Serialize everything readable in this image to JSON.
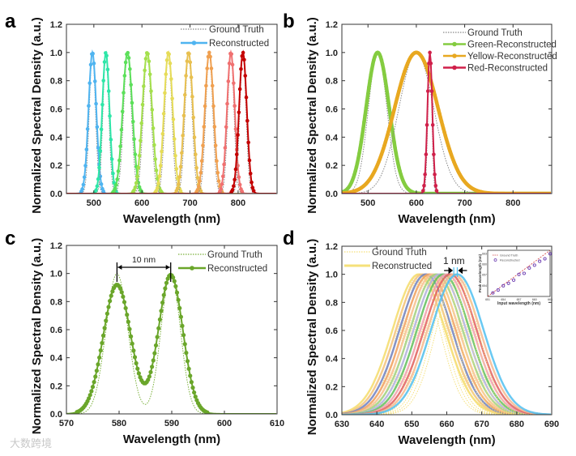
{
  "watermark": "大数跨境",
  "chart_data": [
    {
      "panel": "a",
      "type": "line",
      "xlabel": "Wavelength (nm)",
      "ylabel": "Normalized Spectral Density (a.u.)",
      "xlim": [
        443,
        881
      ],
      "ylim": [
        0,
        1.2
      ],
      "xticks": [
        500,
        600,
        700,
        800
      ],
      "yticks": [
        0.0,
        0.2,
        0.4,
        0.6,
        0.8,
        1.0,
        1.2
      ],
      "legend": {
        "placement": "top-right",
        "entries": [
          {
            "label": "Ground Truth",
            "style": "dotted",
            "color": "#888888"
          },
          {
            "label": "Reconstructed",
            "style": "line-marker",
            "color": "#4fb4f0"
          }
        ]
      },
      "series": [
        {
          "name": "Reconstructed 497",
          "color": "#4fb4f0",
          "center": 497,
          "sigma": 8,
          "amplitude": 1.0
        },
        {
          "name": "Reconstructed 525",
          "color": "#2ee6a8",
          "center": 525,
          "sigma": 7.5,
          "amplitude": 1.0
        },
        {
          "name": "Reconstructed 570",
          "color": "#5ce05a",
          "center": 570,
          "sigma": 10,
          "amplitude": 1.0
        },
        {
          "name": "Reconstructed 611",
          "color": "#a4e04c",
          "center": 611,
          "sigma": 10,
          "amplitude": 1.0
        },
        {
          "name": "Reconstructed 655",
          "color": "#e6dc58",
          "center": 655,
          "sigma": 9,
          "amplitude": 1.0
        },
        {
          "name": "Reconstructed 697",
          "color": "#e8c050",
          "center": 697,
          "sigma": 9,
          "amplitude": 1.0
        },
        {
          "name": "Reconstructed 740",
          "color": "#f0a050",
          "center": 740,
          "sigma": 9,
          "amplitude": 1.0
        },
        {
          "name": "Reconstructed 785",
          "color": "#f07070",
          "center": 785,
          "sigma": 8,
          "amplitude": 1.0
        },
        {
          "name": "Reconstructed 810",
          "color": "#c40000",
          "center": 810,
          "sigma": 8,
          "amplitude": 1.0
        }
      ]
    },
    {
      "panel": "b",
      "type": "line",
      "xlabel": "Wavelength (nm)",
      "ylabel": "Normalized Spectral Density (a.u.)",
      "xlim": [
        446,
        880
      ],
      "ylim": [
        0,
        1.2
      ],
      "xticks": [
        500,
        600,
        700,
        800
      ],
      "yticks": [
        0.0,
        0.2,
        0.4,
        0.6,
        0.8,
        1.0,
        1.2
      ],
      "legend": {
        "placement": "top-right",
        "entries": [
          {
            "label": "Ground Truth",
            "style": "dotted",
            "color": "#888888"
          },
          {
            "label": "Green-Reconstructed",
            "style": "line-marker",
            "color": "#84cc40"
          },
          {
            "label": "Yellow-Reconstructed",
            "style": "line-marker",
            "color": "#e8a820"
          },
          {
            "label": "Red-Reconstructed",
            "style": "line-marker",
            "color": "#d0204a"
          }
        ]
      },
      "series": [
        {
          "name": "Green-Reconstructed",
          "color": "#84cc40",
          "center": 520,
          "sigma": 24,
          "amplitude": 1.0
        },
        {
          "name": "Yellow-Reconstructed",
          "color": "#e8a820",
          "center": 600,
          "sigma": 45,
          "amplitude": 1.0
        },
        {
          "name": "Red-Reconstructed",
          "color": "#d0204a",
          "center": 628,
          "sigma": 5,
          "amplitude": 1.0
        }
      ]
    },
    {
      "panel": "c",
      "type": "line",
      "xlabel": "Wavelength (nm)",
      "ylabel": "Normalized Spectral Density (a.u.)",
      "xlim": [
        570,
        610
      ],
      "ylim": [
        0,
        1.2
      ],
      "xticks": [
        570,
        580,
        590,
        600,
        610
      ],
      "yticks": [
        0.0,
        0.2,
        0.4,
        0.6,
        0.8,
        1.0,
        1.2
      ],
      "annotation": "10 nm",
      "legend": {
        "placement": "top-right",
        "entries": [
          {
            "label": "Ground Truth",
            "style": "dotted",
            "color": "#7ab03a"
          },
          {
            "label": "Reconstructed",
            "style": "line-marker",
            "color": "#6aa62a"
          }
        ]
      },
      "series": [
        {
          "name": "Reconstructed",
          "color": "#6aa62a",
          "peaks": [
            {
              "center": 579.6,
              "sigma": 2.6,
              "amplitude": 0.92
            },
            {
              "center": 589.8,
              "sigma": 2.3,
              "amplitude": 0.99
            }
          ]
        }
      ]
    },
    {
      "panel": "d",
      "type": "line",
      "xlabel": "Wavelength (nm)",
      "ylabel": "Normalized Spectral Density (a.u.)",
      "xlim": [
        630,
        690
      ],
      "ylim": [
        0,
        1.2
      ],
      "xticks": [
        630,
        640,
        650,
        660,
        670,
        680,
        690
      ],
      "yticks": [
        0.0,
        0.2,
        0.4,
        0.6,
        0.8,
        1.0,
        1.2
      ],
      "annotation": "1 nm",
      "legend": {
        "placement": "top-left",
        "entries": [
          {
            "label": "Ground Truth",
            "style": "dotted",
            "color": "#f5e07a"
          },
          {
            "label": "Reconstructed",
            "style": "line",
            "color": "#f5e07a"
          }
        ]
      },
      "series": [
        {
          "name": "652 nm",
          "color": "#f5dc6a",
          "center": 652,
          "sigma": 7.5,
          "amplitude": 1.0
        },
        {
          "name": "653 nm",
          "color": "#f3c27a",
          "center": 653,
          "sigma": 7.5,
          "amplitude": 1.0
        },
        {
          "name": "654 nm",
          "color": "#7080c0",
          "center": 654,
          "sigma": 7.5,
          "amplitude": 1.0
        },
        {
          "name": "655 nm",
          "color": "#f0a060",
          "center": 655,
          "sigma": 7.5,
          "amplitude": 1.0
        },
        {
          "name": "656 nm",
          "color": "#f7c090",
          "center": 656,
          "sigma": 7.5,
          "amplitude": 1.0
        },
        {
          "name": "657 nm",
          "color": "#a0d080",
          "center": 657,
          "sigma": 7.5,
          "amplitude": 1.0
        },
        {
          "name": "658 nm",
          "color": "#b0b0e0",
          "center": 658,
          "sigma": 7.5,
          "amplitude": 1.0
        },
        {
          "name": "659 nm",
          "color": "#60c060",
          "center": 659,
          "sigma": 7.5,
          "amplitude": 1.0
        },
        {
          "name": "660 nm",
          "color": "#f0a0b0",
          "center": 660,
          "sigma": 7.5,
          "amplitude": 1.0
        },
        {
          "name": "661 nm",
          "color": "#e06060",
          "center": 661,
          "sigma": 7.5,
          "amplitude": 1.0
        },
        {
          "name": "662 nm",
          "color": "#f5b890",
          "center": 662,
          "sigma": 7.5,
          "amplitude": 1.0
        },
        {
          "name": "663 nm",
          "color": "#50c0f0",
          "center": 663,
          "sigma": 7.5,
          "amplitude": 1.0
        }
      ],
      "inset": {
        "type": "scatter",
        "xlabel": "Input wavelength (nm)",
        "ylabel": "Peak wavelength (nm)",
        "xlim": [
          651,
          663
        ],
        "ylim": [
          651,
          664
        ],
        "xticks": [
          651,
          654,
          657,
          660,
          663
        ],
        "yticks": [
          654,
          657,
          660,
          663
        ],
        "legend": [
          "Ground Truth",
          "Reconstructed"
        ],
        "x": [
          652,
          653,
          654,
          655,
          656,
          657,
          658,
          659,
          660,
          661,
          662,
          663
        ],
        "y": [
          652.0,
          652.8,
          654.0,
          654.7,
          655.6,
          657.2,
          657.5,
          659.0,
          659.8,
          660.9,
          661.6,
          663.0
        ]
      }
    }
  ]
}
